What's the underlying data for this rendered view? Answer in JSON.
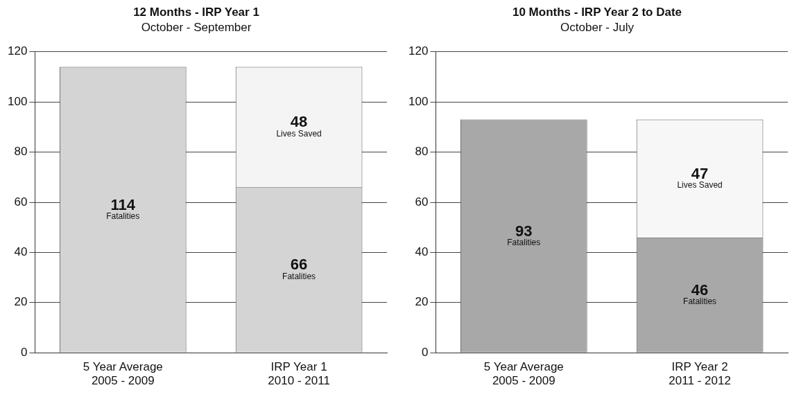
{
  "chart_data": [
    {
      "type": "bar",
      "title": "12 Months - IRP Year 1",
      "subtitle": "October - September",
      "categories": [
        "5 Year Average\n2005 - 2009",
        "IRP Year 1\n2010 - 2011"
      ],
      "stacked": true,
      "series": [
        {
          "name": "Fatalities",
          "color": "#d4d4d4",
          "values": [
            114,
            66
          ]
        },
        {
          "name": "Lives Saved",
          "color": "#f4f4f4",
          "values": [
            null,
            48
          ]
        }
      ],
      "ylim": [
        0,
        120
      ],
      "yticks": [
        0,
        20,
        40,
        60,
        80,
        100,
        120
      ],
      "grid": "y",
      "data_labels": true,
      "legend": false
    },
    {
      "type": "bar",
      "title": "10 Months - IRP Year 2 to Date",
      "subtitle": "October - July",
      "categories": [
        "5 Year Average\n2005 - 2009",
        "IRP Year 2\n2011 - 2012"
      ],
      "stacked": true,
      "series": [
        {
          "name": "Fatalities",
          "color": "#a8a8a8",
          "values": [
            93,
            46
          ]
        },
        {
          "name": "Lives Saved",
          "color": "#f7f7f7",
          "values": [
            null,
            47
          ]
        }
      ],
      "ylim": [
        0,
        120
      ],
      "yticks": [
        0,
        20,
        40,
        60,
        80,
        100,
        120
      ],
      "grid": "y",
      "data_labels": true,
      "legend": false
    }
  ]
}
